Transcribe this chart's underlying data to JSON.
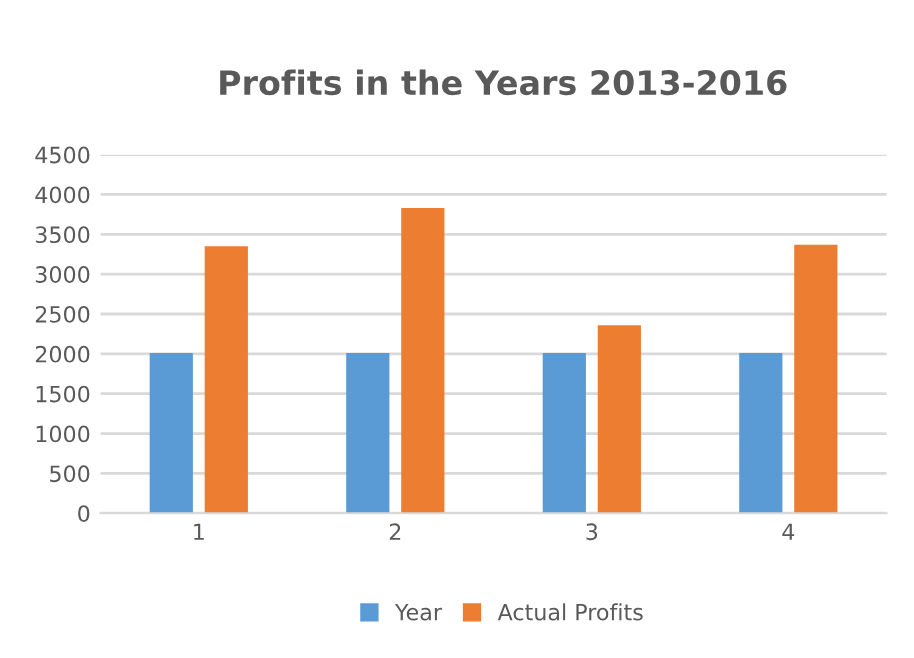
{
  "chart_data": {
    "type": "bar",
    "title": "Profits in the Years 2013-2016",
    "categories": [
      "1",
      "2",
      "3",
      "4"
    ],
    "series": [
      {
        "name": "Year",
        "color": "#5b9bd5",
        "values": [
          2010,
          2010,
          2010,
          2010
        ]
      },
      {
        "name": "Actual Profits",
        "color": "#ed7d31",
        "values": [
          3350,
          3830,
          2360,
          3370
        ]
      }
    ],
    "ylim": [
      0,
      4500
    ],
    "yticks": [
      0,
      500,
      1000,
      1500,
      2000,
      2500,
      3000,
      3500,
      4000,
      4500
    ],
    "grid": "y",
    "legend": "bottom"
  }
}
